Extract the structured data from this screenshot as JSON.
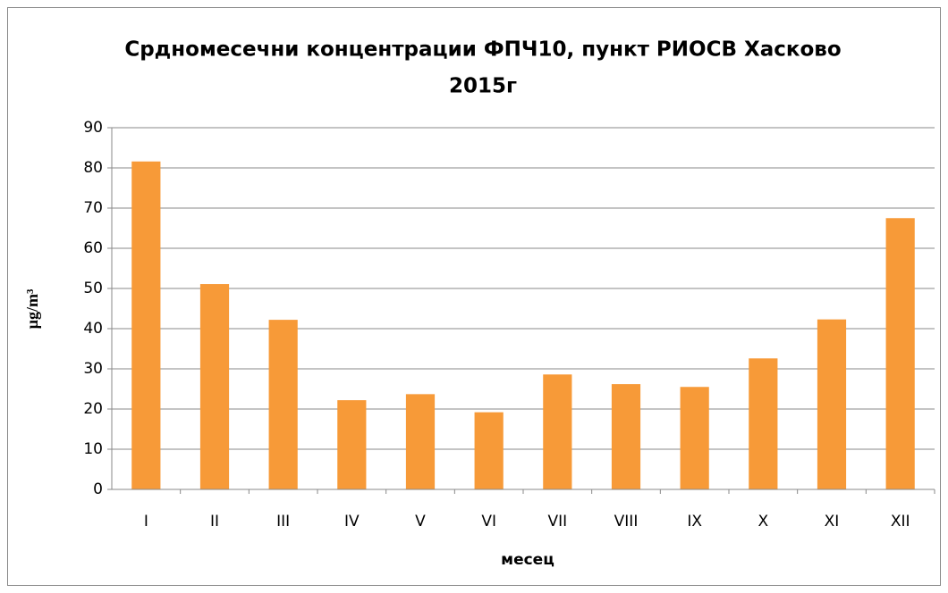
{
  "chart_data": {
    "type": "bar",
    "title": [
      "Срдномесечни концентрации ФПЧ10, пункт РИОСВ Хасково",
      "2015г"
    ],
    "x_label": "месец",
    "y_label": "µg/m³",
    "categories": [
      "I",
      "II",
      "III",
      "IV",
      "V",
      "VI",
      "VII",
      "VIII",
      "IX",
      "X",
      "XI",
      "XII"
    ],
    "values": [
      81.6,
      51.1,
      42.2,
      22.2,
      23.7,
      19.2,
      28.6,
      26.2,
      25.5,
      32.6,
      42.3,
      67.5
    ],
    "color": "#f79a38",
    "ylim": [
      0,
      90
    ],
    "yticks": [
      0,
      10,
      20,
      30,
      40,
      50,
      60,
      70,
      80,
      90
    ],
    "grid": true
  }
}
